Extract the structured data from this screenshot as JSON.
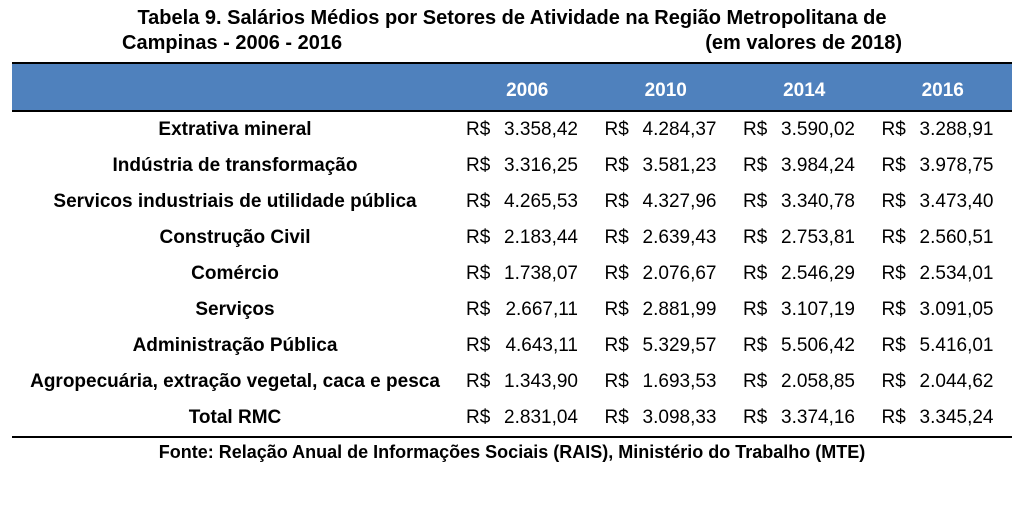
{
  "colors": {
    "header_bg": "#4f81bd",
    "header_text": "#ffffff",
    "border": "#000000",
    "body_text": "#000000",
    "background": "#ffffff"
  },
  "title": {
    "line1": "Tabela 9. Salários Médios por Setores de Atividade na Região Metropolitana de",
    "line2_left": "Campinas - 2006 - 2016",
    "line2_right": "(em valores de 2018)"
  },
  "years": [
    "2006",
    "2010",
    "2014",
    "2016"
  ],
  "currency_prefix": "R$",
  "rows": [
    {
      "label": "Extrativa mineral",
      "values": [
        "3.358,42",
        "4.284,37",
        "3.590,02",
        "3.288,91"
      ]
    },
    {
      "label": "Indústria de transformação",
      "values": [
        "3.316,25",
        "3.581,23",
        "3.984,24",
        "3.978,75"
      ]
    },
    {
      "label": "Servicos industriais de utilidade pública",
      "values": [
        "4.265,53",
        "4.327,96",
        "3.340,78",
        "3.473,40"
      ]
    },
    {
      "label": "Construção Civil",
      "values": [
        "2.183,44",
        "2.639,43",
        "2.753,81",
        "2.560,51"
      ]
    },
    {
      "label": "Comércio",
      "values": [
        "1.738,07",
        "2.076,67",
        "2.546,29",
        "2.534,01"
      ]
    },
    {
      "label": "Serviços",
      "values": [
        "2.667,11",
        "2.881,99",
        "3.107,19",
        "3.091,05"
      ]
    },
    {
      "label": "Administração Pública",
      "values": [
        "4.643,11",
        "5.329,57",
        "5.506,42",
        "5.416,01"
      ]
    },
    {
      "label": "Agropecuária, extração vegetal, caca e pesca",
      "values": [
        "1.343,90",
        "1.693,53",
        "2.058,85",
        "2.044,62"
      ]
    },
    {
      "label": "Total RMC",
      "values": [
        "2.831,04",
        "3.098,33",
        "3.374,16",
        "3.345,24"
      ]
    }
  ],
  "source": "Fonte: Relação Anual de Informações Sociais (RAIS), Ministério do Trabalho (MTE)"
}
